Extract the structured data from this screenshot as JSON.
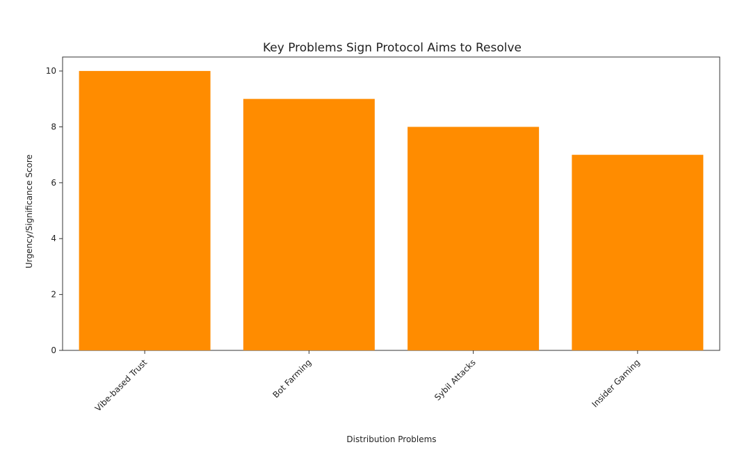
{
  "chart_data": {
    "type": "bar",
    "title": "Key Problems Sign Protocol Aims to Resolve",
    "xlabel": "Distribution Problems",
    "ylabel": "Urgency/Significance Score",
    "categories": [
      "Vibe-based Trust",
      "Bot Farming",
      "Sybil Attacks",
      "Insider Gaming"
    ],
    "values": [
      10,
      9,
      8,
      7
    ],
    "ylim": [
      0,
      10.5
    ],
    "yticks": [
      0,
      2,
      4,
      6,
      8,
      10
    ],
    "bar_color": "#FF8C00",
    "grid": false,
    "legend": false
  }
}
